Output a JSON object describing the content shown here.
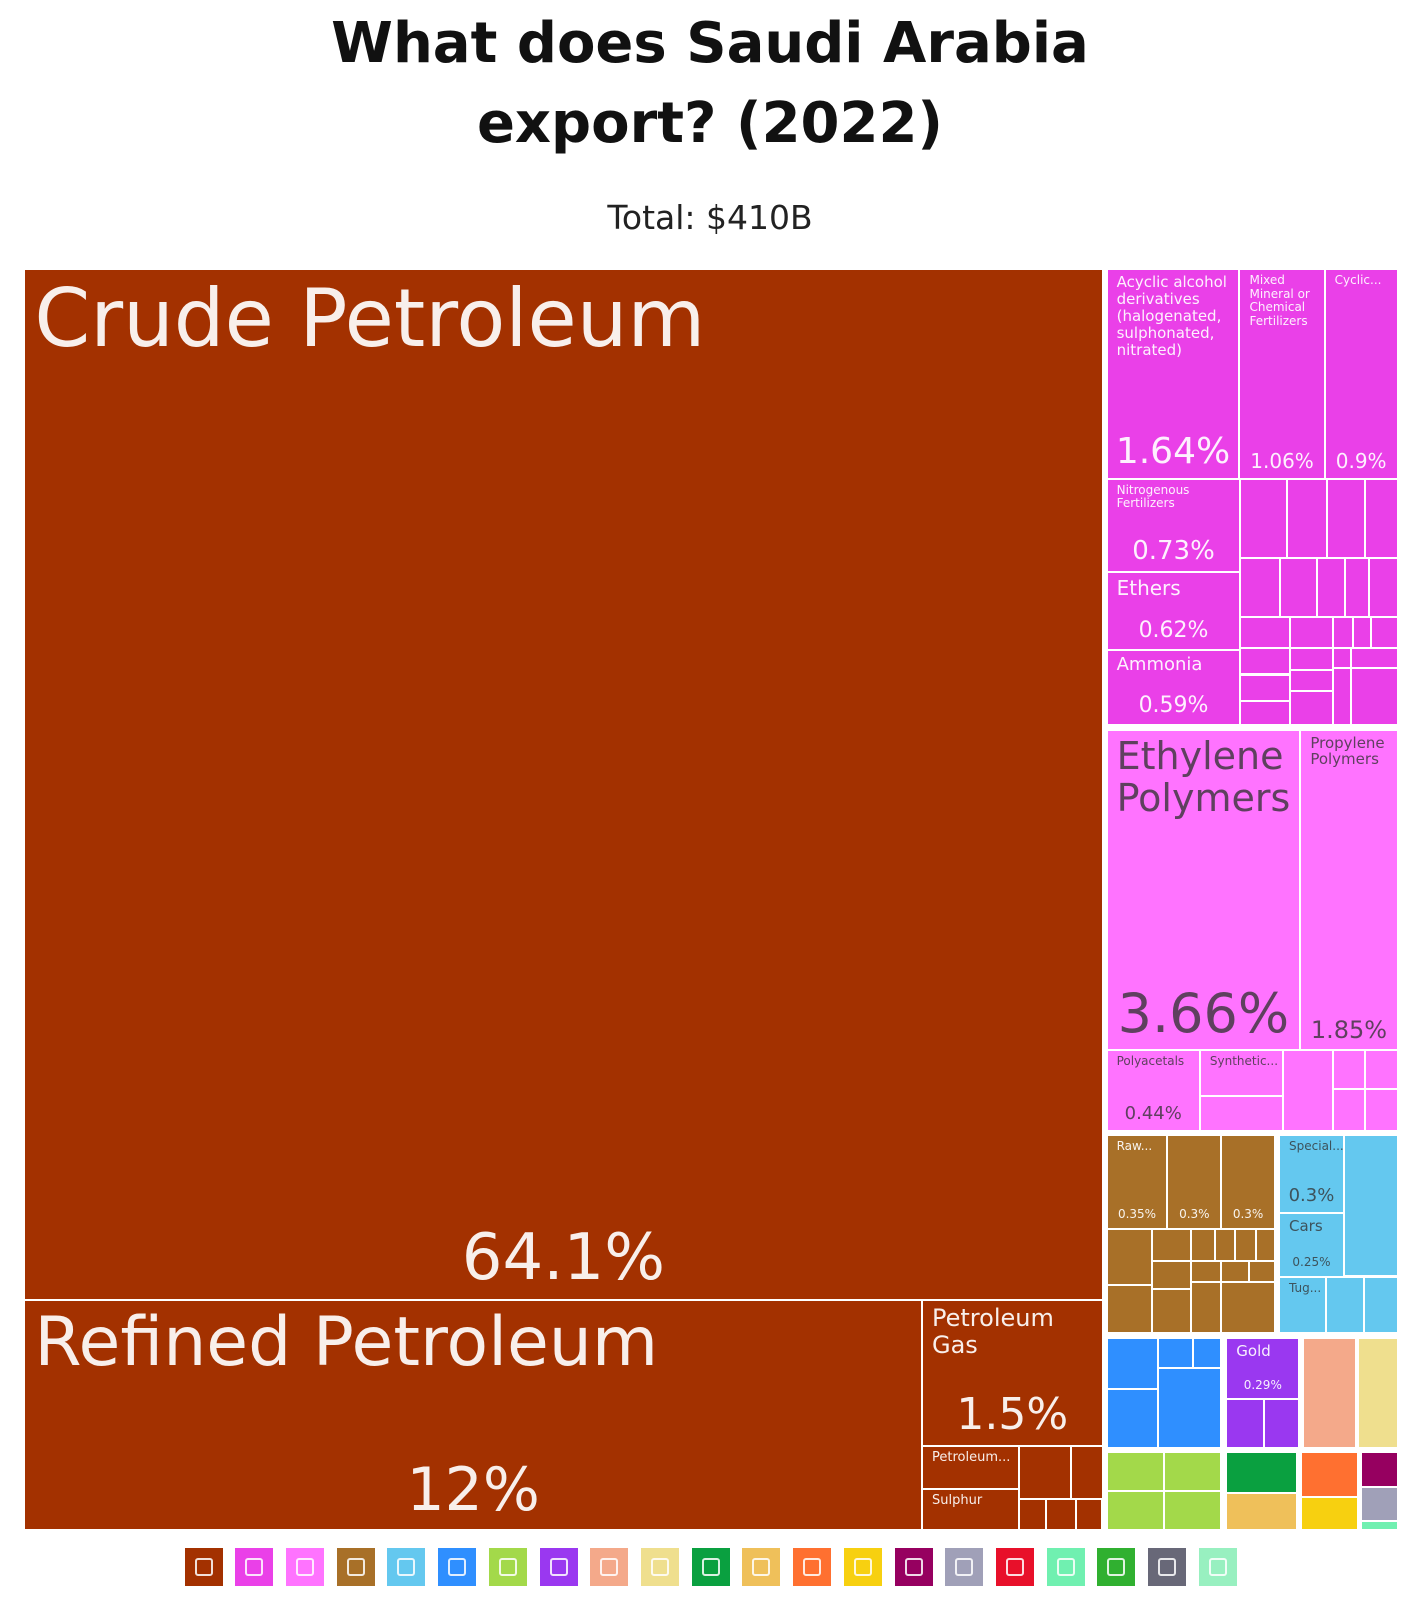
{
  "chart_data": {
    "type": "treemap",
    "title": "What does Saudi Arabia export? (2022)",
    "subtitle": "Total: $410B",
    "categories": [
      "Crude Petroleum",
      "Refined Petroleum",
      "Petroleum Gas",
      "Petroleum...",
      "Sulphur",
      "Acyclic alcohol derivatives (halogenated, sulphonated, nitrated)",
      "Mixed Mineral or Chemical Fertilizers",
      "Cyclic...",
      "Nitrogenous Fertilizers",
      "Ethers",
      "Ammonia",
      "Ethylene Polymers",
      "Propylene Polymers",
      "Polyacetals",
      "Synthetic...",
      "Raw...",
      null,
      null,
      "Special...",
      "Cars",
      "Tug...",
      "Gold"
    ],
    "values": [
      64.1,
      12,
      1.5,
      0.3,
      0.3,
      1.64,
      1.06,
      0.9,
      0.73,
      0.62,
      0.59,
      3.66,
      1.85,
      0.44,
      0.3,
      0.35,
      0.3,
      0.3,
      0.3,
      0.25,
      0.15,
      0.29
    ],
    "value_labels": [
      "64.1%",
      "12%",
      "1.5%",
      null,
      null,
      "1.64%",
      "1.06%",
      "0.9%",
      "0.73%",
      "0.62%",
      "0.59%",
      "3.66%",
      "1.85%",
      "0.44%",
      null,
      "0.35%",
      "0.3%",
      "0.3%",
      "0.3%",
      "0.25%",
      null,
      "0.29%"
    ],
    "colors": [
      "#a33100",
      "#a33100",
      "#a33100",
      "#a33100",
      "#a33100",
      "#ea40e8",
      "#ea40e8",
      "#ea40e8",
      "#ea40e8",
      "#ea40e8",
      "#ea40e8",
      "#ff73ff",
      "#ff73ff",
      "#ff73ff",
      "#ff73ff",
      "#a87028",
      "#a87028",
      "#a87028",
      "#64c8ef",
      "#64c8ef",
      "#64c8ef",
      "#9a38f0"
    ],
    "legend_colors": [
      "#a33100",
      "#ea40e8",
      "#ff73ff",
      "#a87028",
      "#64c8ef",
      "#2f8fff",
      "#a3d94a",
      "#9a38f0",
      "#f4a98a",
      "#efdf8e",
      "#0aa040",
      "#efc05a",
      "#ff7030",
      "#f7d010",
      "#960060",
      "#a0a0b8",
      "#e8102a",
      "#70f0b0",
      "#30b030",
      "#686878",
      "#98f0c0"
    ]
  }
}
